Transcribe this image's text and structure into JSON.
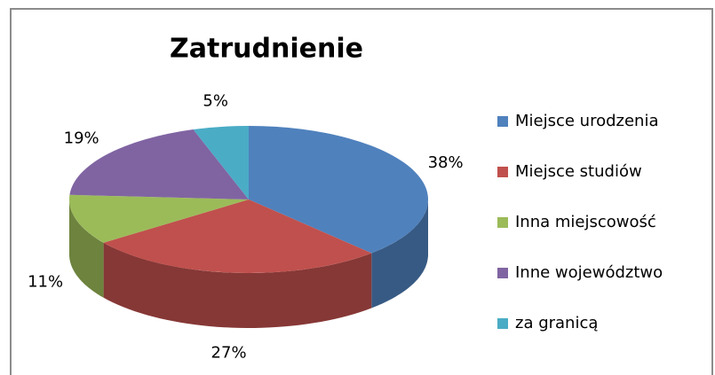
{
  "chart_data": {
    "type": "pie",
    "title": "Zatrudnienie",
    "categories": [
      "Miejsce urodzenia",
      "Miejsce studiów",
      "Inna miejscowość",
      "Inne województwo",
      "za granicą"
    ],
    "values": [
      38,
      27,
      11,
      19,
      5
    ],
    "value_labels": [
      "38%",
      "27%",
      "11%",
      "19%",
      "5%"
    ],
    "colors": [
      "#4f81bd",
      "#c0504d",
      "#9bbb59",
      "#8064a2",
      "#4bacc6"
    ],
    "legend": "right"
  }
}
